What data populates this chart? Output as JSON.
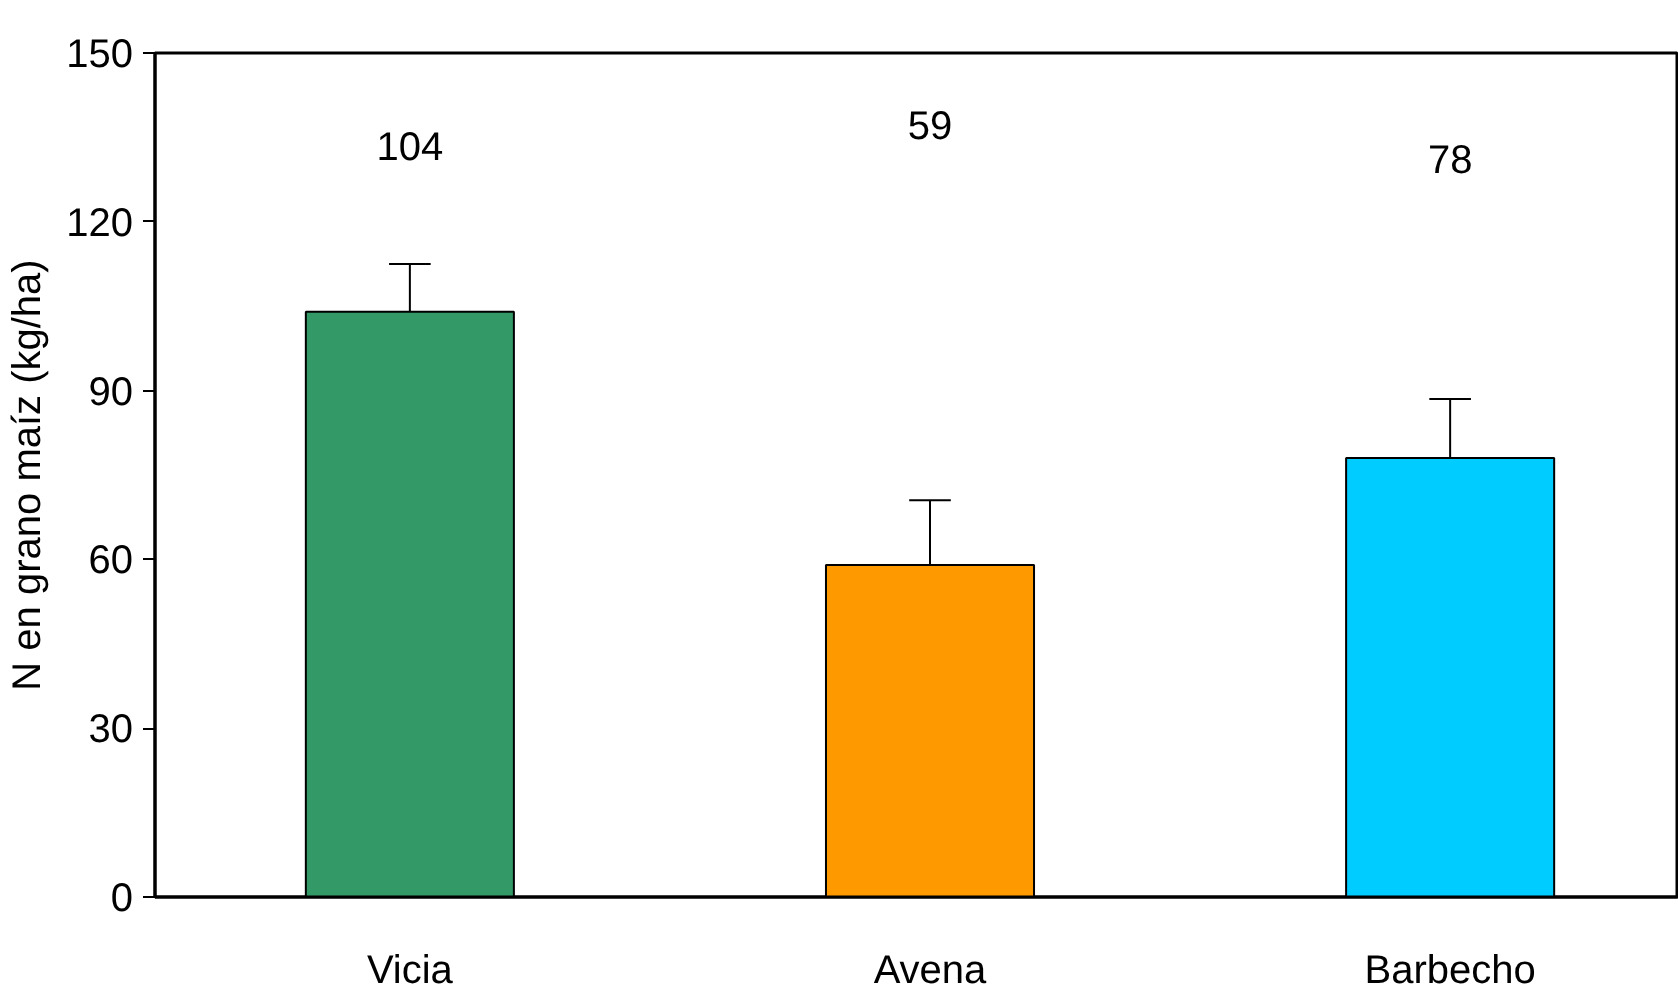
{
  "chart_data": {
    "type": "bar",
    "ylabel": "N en grano maíz (kg/ha)",
    "categories": [
      "Vicia",
      "Avena",
      "Barbecho"
    ],
    "values": [
      104,
      59,
      78
    ],
    "colors": [
      "#339966",
      "#ff9900",
      "#00ccff"
    ],
    "errors": [
      [
        104,
        112.5
      ],
      [
        59,
        70.5
      ],
      [
        78,
        88.5
      ]
    ],
    "annotations": [
      "104",
      "59",
      "78"
    ],
    "ylim": [
      0,
      150
    ],
    "yticks": [
      0,
      30,
      60,
      90,
      120,
      150
    ],
    "grid": false
  }
}
